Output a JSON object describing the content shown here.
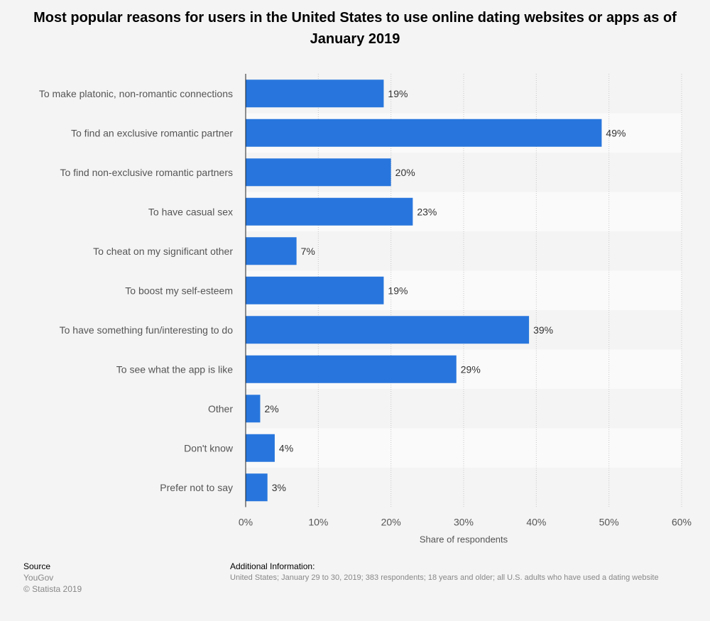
{
  "chart_data": {
    "type": "bar",
    "orientation": "horizontal",
    "title": "Most popular reasons for users in the United States to use online dating websites or apps as of January 2019",
    "categories": [
      "To make platonic, non-romantic connections",
      "To find an exclusive romantic partner",
      "To find non-exclusive romantic partners",
      "To have casual sex",
      "To cheat on my significant other",
      "To boost my self-esteem",
      "To have something fun/interesting to do",
      "To see what the app is like",
      "Other",
      "Don't know",
      "Prefer not to say"
    ],
    "values": [
      19,
      49,
      20,
      23,
      7,
      19,
      39,
      29,
      2,
      4,
      3
    ],
    "value_labels": [
      "19%",
      "49%",
      "20%",
      "23%",
      "7%",
      "19%",
      "39%",
      "29%",
      "2%",
      "4%",
      "3%"
    ],
    "xlabel": "Share of respondents",
    "ylabel": "",
    "xlim": [
      0,
      60
    ],
    "ticks": [
      0,
      10,
      20,
      30,
      40,
      50,
      60
    ],
    "tick_labels": [
      "0%",
      "10%",
      "20%",
      "30%",
      "40%",
      "50%",
      "60%"
    ],
    "grid": true,
    "bar_color": "#2876dd"
  },
  "footer": {
    "source_header": "Source",
    "source_name": "YouGov",
    "copyright": "© Statista 2019",
    "info_header": "Additional Information:",
    "info_text": "United States; January 29 to 30, 2019; 383 respondents; 18 years and older; all U.S. adults who have used a dating website"
  }
}
